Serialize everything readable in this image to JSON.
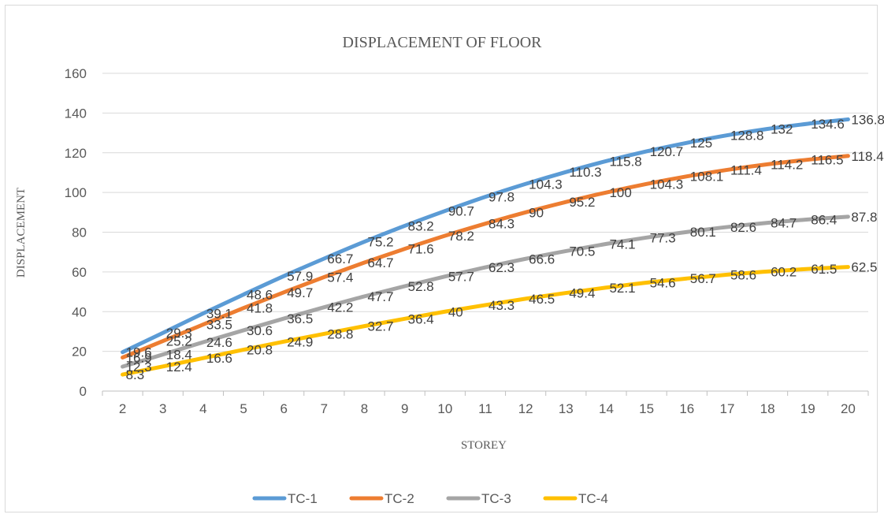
{
  "chart_data": {
    "type": "line",
    "title": "DISPLACEMENT OF FLOOR",
    "xlabel": "STOREY",
    "ylabel": "DISPLACEMENT",
    "x": [
      "2",
      "3",
      "4",
      "5",
      "6",
      "7",
      "8",
      "9",
      "10",
      "11",
      "12",
      "13",
      "14",
      "15",
      "16",
      "17",
      "18",
      "19",
      "20"
    ],
    "ylim": [
      0,
      160
    ],
    "yticks": [
      "0",
      "20",
      "40",
      "60",
      "80",
      "100",
      "120",
      "140",
      "160"
    ],
    "grid": true,
    "legend_position": "bottom",
    "series": [
      {
        "name": "TC-1",
        "color": "#5b9bd5",
        "values": [
          19.6,
          29.3,
          39.1,
          48.6,
          57.9,
          66.7,
          75.2,
          83.2,
          90.7,
          97.8,
          104.3,
          110.3,
          115.8,
          120.7,
          125,
          128.8,
          132,
          134.6,
          136.8
        ]
      },
      {
        "name": "TC-2",
        "color": "#ed7d31",
        "values": [
          16.9,
          25.2,
          33.5,
          41.8,
          49.7,
          57.4,
          64.7,
          71.6,
          78.2,
          84.3,
          90,
          95.2,
          100,
          104.3,
          108.1,
          111.4,
          114.2,
          116.5,
          118.4
        ]
      },
      {
        "name": "TC-3",
        "color": "#a5a5a5",
        "values": [
          12.3,
          18.4,
          24.6,
          30.6,
          36.5,
          42.2,
          47.7,
          52.8,
          57.7,
          62.3,
          66.6,
          70.5,
          74.1,
          77.3,
          80.1,
          82.6,
          84.7,
          86.4,
          87.8
        ]
      },
      {
        "name": "TC-4",
        "color": "#ffc000",
        "values": [
          8.3,
          12.4,
          16.6,
          20.8,
          24.9,
          28.8,
          32.7,
          36.4,
          40,
          43.3,
          46.5,
          49.4,
          52.1,
          54.6,
          56.7,
          58.6,
          60.2,
          61.5,
          62.5
        ]
      }
    ]
  }
}
